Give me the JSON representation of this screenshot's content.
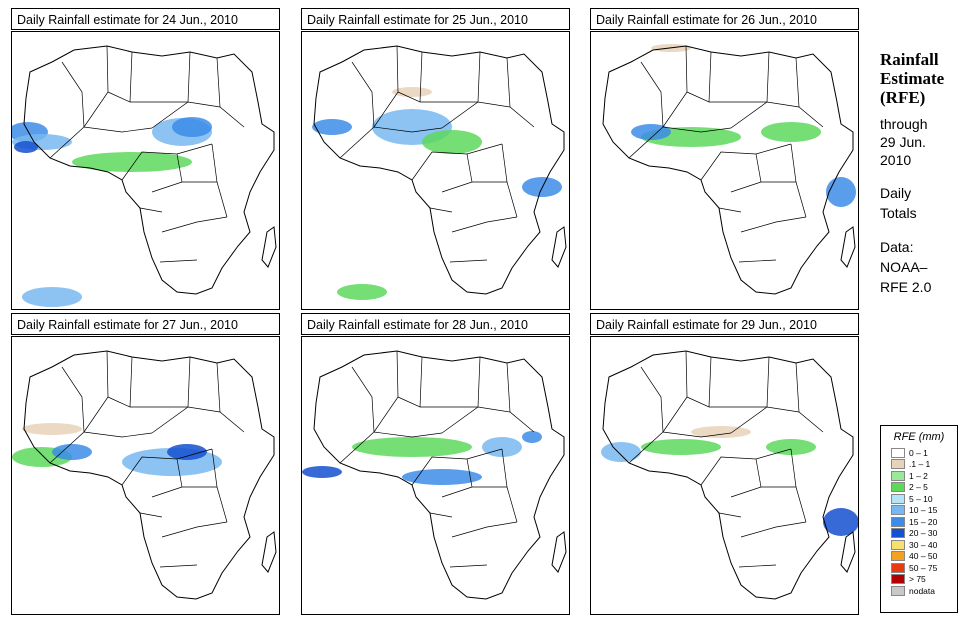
{
  "panels": [
    {
      "title": "Daily Rainfall estimate for  24 Jun., 2010"
    },
    {
      "title": "Daily Rainfall estimate for  25 Jun., 2010"
    },
    {
      "title": "Daily Rainfall estimate for  26 Jun., 2010"
    },
    {
      "title": "Daily Rainfall estimate for  27 Jun., 2010"
    },
    {
      "title": "Daily Rainfall estimate for  28 Jun., 2010"
    },
    {
      "title": "Daily Rainfall estimate for  29 Jun., 2010"
    }
  ],
  "side": {
    "line1": "Rainfall",
    "line2": "Estimate",
    "line3": "(RFE)",
    "through": "through",
    "date1": "29 Jun.",
    "date2": "2010",
    "daily": "Daily",
    "totals": "Totals",
    "data_label": "Data:",
    "source1": "NOAA–",
    "source2": "RFE 2.0"
  },
  "legend": {
    "title": "RFE (mm)",
    "items": [
      {
        "label": "0 – 1",
        "color": "#ffffff"
      },
      {
        "label": ".1 – 1",
        "color": "#e8d2b8"
      },
      {
        "label": "1 – 2",
        "color": "#9be89b"
      },
      {
        "label": "2 – 5",
        "color": "#5dd85d"
      },
      {
        "label": "5 – 10",
        "color": "#b4e4f8"
      },
      {
        "label": "10 – 15",
        "color": "#78b8f0"
      },
      {
        "label": "15 – 20",
        "color": "#3c8ce8"
      },
      {
        "label": "20 – 30",
        "color": "#1450d0"
      },
      {
        "label": "30 – 40",
        "color": "#f8e070"
      },
      {
        "label": "40 – 50",
        "color": "#f4a020"
      },
      {
        "label": "50 – 75",
        "color": "#e83c10"
      },
      {
        "label": "> 75",
        "color": "#b40000"
      },
      {
        "label": "nodata",
        "color": "#c8c8c8"
      }
    ]
  }
}
